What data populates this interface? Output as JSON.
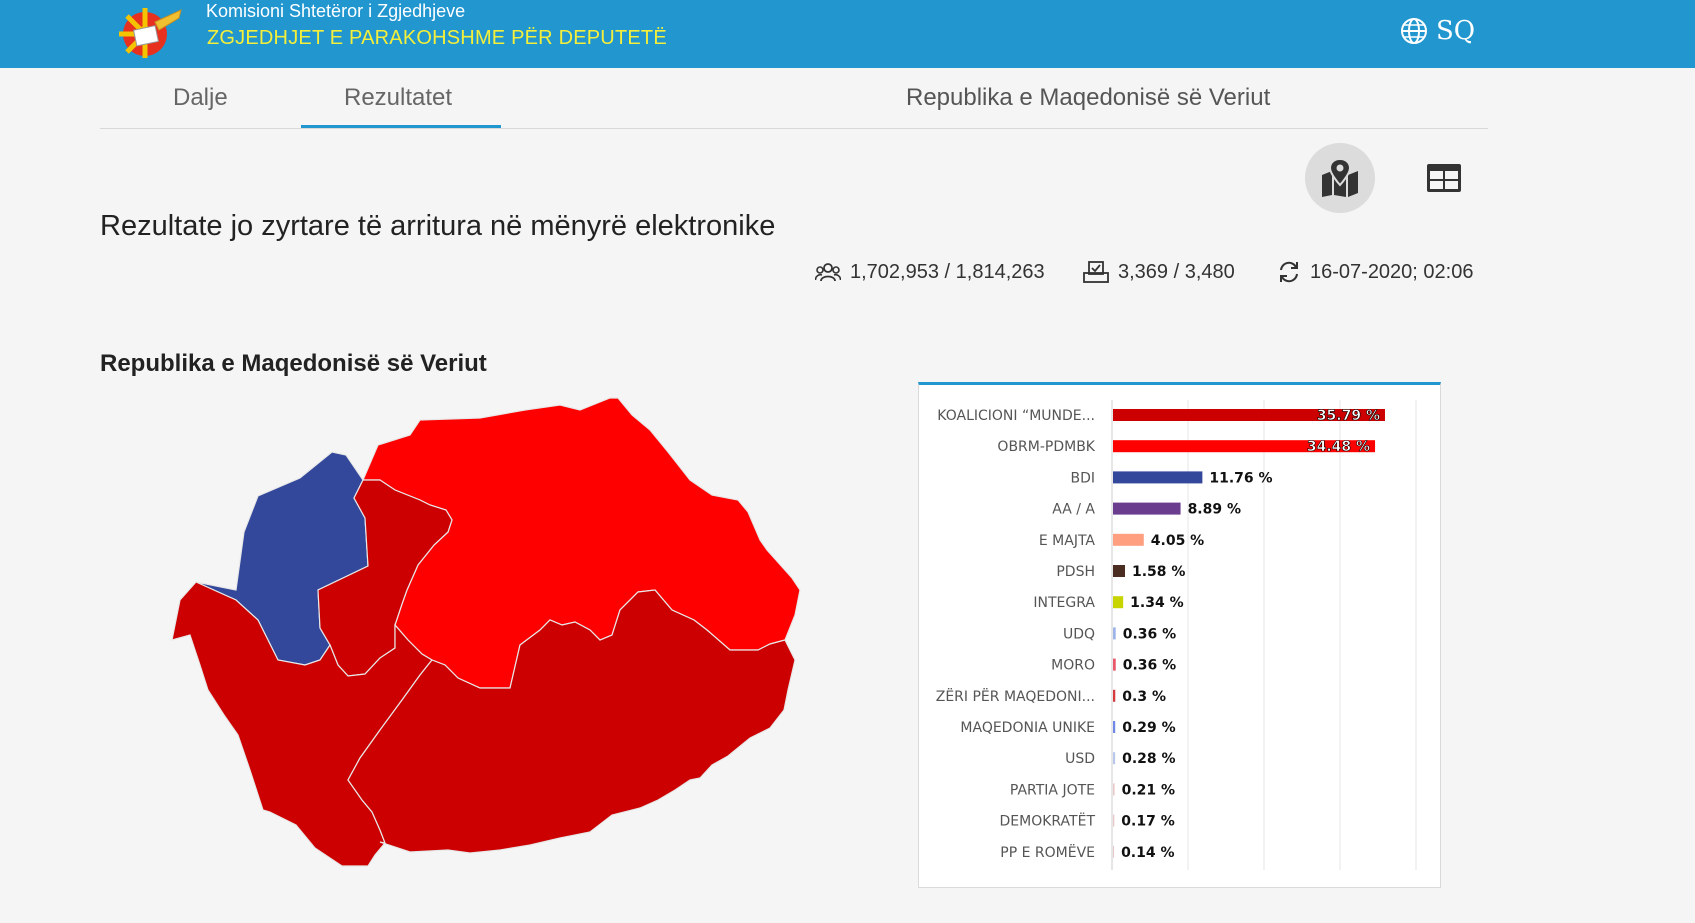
{
  "header": {
    "org_name": "Komisioni Shtetëror i Zgjedhjeve",
    "election_name": "ZGJEDHJET E PARAKOHSHME PËR DEPUTETË",
    "language": "SQ",
    "language_icon": "globe-icon",
    "colors": {
      "bar": "#2196cf",
      "election_name": "#f4ef3a"
    }
  },
  "tabs": [
    {
      "label": "Dalje",
      "active": false
    },
    {
      "label": "Rezultatet",
      "active": true
    }
  ],
  "region_title": "Republika e Maqedonisë së Veriut",
  "view_buttons": {
    "map_icon": "map-marker-icon",
    "table_icon": "table-icon",
    "active": "map"
  },
  "page_title": "Rezultate jo zyrtare të arritura në mënyrë elektronike",
  "stats": {
    "voters": "1,702,953 / 1,814,263",
    "voters_icon": "people-icon",
    "stations": "3,369 / 3,480",
    "stations_icon": "ballot-box-icon",
    "updated": "16-07-2020; 02:06",
    "updated_icon": "refresh-icon"
  },
  "section_title": "Republika e Maqedonisë së Veriut",
  "map": {
    "colors": {
      "blue": "#33479b",
      "red": "#ff0000",
      "dark_red": "#cc0000"
    }
  },
  "chart_data": {
    "type": "bar",
    "orientation": "horizontal",
    "value_suffix": " %",
    "xlim": [
      0,
      40
    ],
    "grid": true,
    "categories": [
      "KOALICIONI “MUNDE...",
      "OBRM-PDMBK",
      "BDI",
      "AA / A",
      "E MAJTA",
      "PDSH",
      "INTEGRA",
      "UDQ",
      "MORO",
      "ZËRI PËR MAQEDONI...",
      "MAQEDONIA UNIKE",
      "USD",
      "PARTIA JOTE",
      "DEMOKRATËT",
      "PP E ROMËVE"
    ],
    "values": [
      35.79,
      34.48,
      11.76,
      8.89,
      4.05,
      1.58,
      1.34,
      0.36,
      0.36,
      0.3,
      0.29,
      0.28,
      0.21,
      0.17,
      0.14
    ],
    "colors": [
      "#cc0000",
      "#ff0000",
      "#33479b",
      "#6a3d8f",
      "#ff9f7f",
      "#4a2c20",
      "#c8d400",
      "#9fb4e8",
      "#e8576a",
      "#d63a3a",
      "#6f88e8",
      "#b9c7ec",
      "#e8c8c8",
      "#e8c8c8",
      "#e8c8c8"
    ],
    "labels": [
      "35.79 %",
      "34.48 %",
      "11.76 %",
      "8.89 %",
      "4.05 %",
      "1.58 %",
      "1.34 %",
      "0.36 %",
      "0.36 %",
      "0.3 %",
      "0.29 %",
      "0.28 %",
      "0.21 %",
      "0.17 %",
      "0.14 %"
    ]
  }
}
